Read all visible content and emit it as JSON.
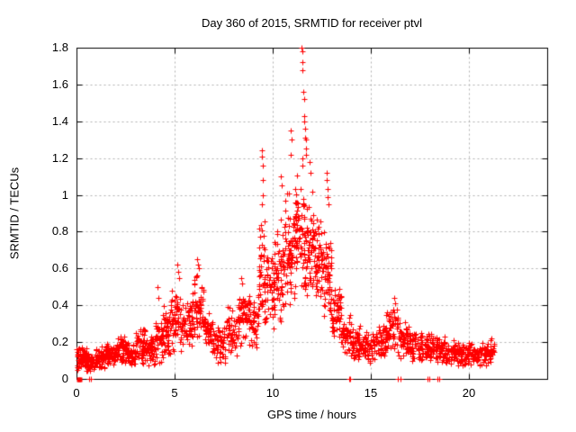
{
  "chart_data": {
    "type": "scatter",
    "title": "Day 360 of 2015, SRMTID for receiver ptvl",
    "xlabel": "GPS time / hours",
    "ylabel": "SRMTID / TECUs",
    "xlim": [
      0,
      24
    ],
    "ylim": [
      0,
      1.8
    ],
    "xticks": [
      0,
      5,
      10,
      15,
      20
    ],
    "yticks": [
      0,
      0.2,
      0.4,
      0.6,
      0.8,
      1.0,
      1.2,
      1.4,
      1.6,
      1.8
    ],
    "xtick_labels": [
      "0",
      "5",
      "10",
      "15",
      "20"
    ],
    "ytick_labels": [
      "0",
      "0.2",
      "0.4",
      "0.6",
      "0.8",
      "1",
      "1.2",
      "1.4",
      "1.6",
      "1.8"
    ],
    "grid": "dashed-gray-on",
    "legend": "none",
    "marker": "plus",
    "point_color": "#ff0000",
    "grid_color": "#b0b0b0",
    "frame_color": "#000000",
    "background_color": "#ffffff",
    "seed": 360,
    "dense_bands": [
      [
        0.0,
        0.5,
        60,
        0.04,
        0.19
      ],
      [
        0.5,
        1.0,
        55,
        0.03,
        0.17
      ],
      [
        1.0,
        1.5,
        55,
        0.05,
        0.18
      ],
      [
        1.5,
        2.0,
        55,
        0.06,
        0.21
      ],
      [
        2.0,
        2.5,
        55,
        0.07,
        0.25
      ],
      [
        2.5,
        3.0,
        50,
        0.06,
        0.22
      ],
      [
        3.0,
        3.5,
        55,
        0.08,
        0.3
      ],
      [
        3.5,
        4.0,
        50,
        0.07,
        0.26
      ],
      [
        4.0,
        4.4,
        40,
        0.08,
        0.34
      ],
      [
        4.4,
        4.8,
        45,
        0.1,
        0.42
      ],
      [
        4.8,
        5.3,
        50,
        0.14,
        0.5
      ],
      [
        5.3,
        5.9,
        55,
        0.15,
        0.45
      ],
      [
        5.9,
        6.5,
        60,
        0.16,
        0.58
      ],
      [
        6.5,
        7.0,
        50,
        0.12,
        0.38
      ],
      [
        7.0,
        7.6,
        50,
        0.08,
        0.32
      ],
      [
        7.6,
        8.2,
        50,
        0.1,
        0.4
      ],
      [
        8.2,
        8.8,
        55,
        0.14,
        0.5
      ],
      [
        8.8,
        9.3,
        50,
        0.15,
        0.48
      ],
      [
        9.3,
        9.6,
        40,
        0.25,
        0.9
      ],
      [
        9.6,
        10.1,
        55,
        0.25,
        0.72
      ],
      [
        10.1,
        10.6,
        60,
        0.28,
        0.9
      ],
      [
        10.6,
        11.1,
        65,
        0.32,
        1.05
      ],
      [
        11.1,
        11.6,
        70,
        0.38,
        1.25
      ],
      [
        11.6,
        12.1,
        70,
        0.35,
        1.05
      ],
      [
        12.1,
        12.6,
        60,
        0.32,
        0.95
      ],
      [
        12.6,
        13.0,
        50,
        0.28,
        0.85
      ],
      [
        13.0,
        13.5,
        50,
        0.18,
        0.55
      ],
      [
        13.5,
        14.0,
        50,
        0.12,
        0.35
      ],
      [
        14.0,
        14.6,
        55,
        0.1,
        0.3
      ],
      [
        14.6,
        15.2,
        55,
        0.08,
        0.28
      ],
      [
        15.2,
        15.8,
        55,
        0.1,
        0.32
      ],
      [
        15.8,
        16.4,
        55,
        0.12,
        0.42
      ],
      [
        16.4,
        17.0,
        55,
        0.1,
        0.32
      ],
      [
        17.0,
        17.6,
        55,
        0.08,
        0.28
      ],
      [
        17.6,
        18.2,
        55,
        0.08,
        0.26
      ],
      [
        18.2,
        18.8,
        55,
        0.08,
        0.24
      ],
      [
        18.8,
        19.4,
        55,
        0.07,
        0.22
      ],
      [
        19.4,
        20.0,
        55,
        0.06,
        0.2
      ],
      [
        20.0,
        20.6,
        55,
        0.06,
        0.2
      ],
      [
        20.6,
        21.3,
        55,
        0.07,
        0.22
      ]
    ],
    "spike_points": [
      [
        4.15,
        0.5
      ],
      [
        4.18,
        0.44
      ],
      [
        5.15,
        0.62
      ],
      [
        5.18,
        0.58
      ],
      [
        5.22,
        0.55
      ],
      [
        6.15,
        0.65
      ],
      [
        6.2,
        0.62
      ],
      [
        6.25,
        0.6
      ],
      [
        8.4,
        0.55
      ],
      [
        8.45,
        0.52
      ],
      [
        9.44,
        0.95
      ],
      [
        9.45,
        1.24
      ],
      [
        9.47,
        1.21
      ],
      [
        9.48,
        1.0
      ],
      [
        9.5,
        1.16
      ],
      [
        9.52,
        1.08
      ],
      [
        10.4,
        1.1
      ],
      [
        10.45,
        1.05
      ],
      [
        10.9,
        1.35
      ],
      [
        10.92,
        1.22
      ],
      [
        10.95,
        1.3
      ],
      [
        11.48,
        1.8
      ],
      [
        11.5,
        1.78
      ],
      [
        11.52,
        1.72
      ],
      [
        11.53,
        1.68
      ],
      [
        11.58,
        1.56
      ],
      [
        11.6,
        1.52
      ],
      [
        11.62,
        1.43
      ],
      [
        11.63,
        1.4
      ],
      [
        11.64,
        1.36
      ],
      [
        11.66,
        1.31
      ],
      [
        11.68,
        1.3
      ],
      [
        11.7,
        1.25
      ],
      [
        11.72,
        1.22
      ],
      [
        11.9,
        1.18
      ],
      [
        11.95,
        1.12
      ],
      [
        12.75,
        1.12
      ],
      [
        12.78,
        1.08
      ],
      [
        12.8,
        1.03
      ],
      [
        12.82,
        0.99
      ],
      [
        12.85,
        0.95
      ],
      [
        16.2,
        0.44
      ],
      [
        16.25,
        0.41
      ]
    ],
    "zero_value_hours": [
      0.65,
      0.72,
      13.9,
      13.95,
      16.4,
      16.5,
      17.9,
      18.0,
      18.4,
      18.5
    ],
    "origin_square_hours": [
      0.08,
      0.12
    ]
  }
}
